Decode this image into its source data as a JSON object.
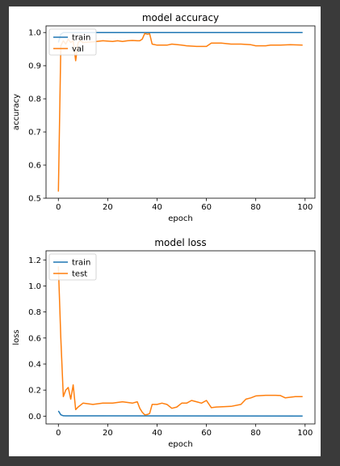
{
  "colors": {
    "train": "#1f77b4",
    "val": "#ff7f0e",
    "page_background": "#3a3a3a",
    "figure_background": "#ffffff"
  },
  "chart_data": [
    {
      "type": "line",
      "title": "model accuracy",
      "xlabel": "epoch",
      "ylabel": "accuracy",
      "xlim": [
        -5,
        104
      ],
      "ylim": [
        0.5,
        1.02
      ],
      "xticks": [
        0,
        20,
        40,
        60,
        80,
        100
      ],
      "yticks": [
        0.5,
        0.6,
        0.7,
        0.8,
        0.9,
        1.0
      ],
      "ytick_labels": [
        "0.5",
        "0.6",
        "0.7",
        "0.8",
        "0.9",
        "1.0"
      ],
      "legend_position": "top-left",
      "series": [
        {
          "name": "train",
          "color": "#1f77b4",
          "x": [
            0,
            1,
            2,
            3,
            99
          ],
          "y": [
            0.97,
            0.995,
            1.0,
            1.0,
            1.0
          ]
        },
        {
          "name": "val",
          "color": "#ff7f0e",
          "x": [
            0,
            1,
            2,
            3,
            4,
            5,
            6,
            7,
            8,
            9,
            10,
            14,
            18,
            22,
            24,
            26,
            28,
            30,
            32,
            33,
            34,
            35,
            36,
            37,
            38,
            40,
            44,
            46,
            50,
            52,
            56,
            60,
            62,
            66,
            70,
            74,
            78,
            80,
            84,
            86,
            90,
            94,
            99
          ],
          "y": [
            0.52,
            0.96,
            0.975,
            0.965,
            0.98,
            0.97,
            0.975,
            0.915,
            0.97,
            0.975,
            0.97,
            0.972,
            0.975,
            0.973,
            0.975,
            0.973,
            0.975,
            0.976,
            0.975,
            0.975,
            0.98,
            0.997,
            0.995,
            0.996,
            0.965,
            0.962,
            0.962,
            0.965,
            0.962,
            0.96,
            0.958,
            0.958,
            0.968,
            0.968,
            0.965,
            0.965,
            0.963,
            0.96,
            0.96,
            0.962,
            0.962,
            0.963,
            0.962
          ]
        }
      ]
    },
    {
      "type": "line",
      "title": "model loss",
      "xlabel": "epoch",
      "ylabel": "loss",
      "xlim": [
        -5,
        104
      ],
      "ylim": [
        -0.06,
        1.27
      ],
      "xticks": [
        0,
        20,
        40,
        60,
        80,
        100
      ],
      "yticks": [
        0.0,
        0.2,
        0.4,
        0.6,
        0.8,
        1.0,
        1.2
      ],
      "ytick_labels": [
        "0.0",
        "0.2",
        "0.4",
        "0.6",
        "0.8",
        "1.0",
        "1.2"
      ],
      "legend_position": "top-left",
      "series": [
        {
          "name": "train",
          "color": "#1f77b4",
          "x": [
            0,
            1,
            2,
            3,
            99
          ],
          "y": [
            0.04,
            0.01,
            0.003,
            0.002,
            0.001
          ]
        },
        {
          "name": "test",
          "color": "#ff7f0e",
          "x": [
            0,
            1,
            2,
            3,
            4,
            5,
            6,
            7,
            8,
            10,
            14,
            18,
            22,
            26,
            30,
            32,
            33,
            34,
            35,
            36,
            37,
            38,
            40,
            42,
            44,
            46,
            48,
            50,
            52,
            54,
            56,
            58,
            60,
            62,
            64,
            70,
            74,
            76,
            78,
            80,
            84,
            88,
            90,
            92,
            94,
            96,
            99
          ],
          "y": [
            1.15,
            0.6,
            0.15,
            0.2,
            0.22,
            0.13,
            0.24,
            0.05,
            0.07,
            0.1,
            0.09,
            0.1,
            0.1,
            0.11,
            0.1,
            0.11,
            0.06,
            0.03,
            0.01,
            0.012,
            0.02,
            0.09,
            0.09,
            0.1,
            0.09,
            0.06,
            0.07,
            0.1,
            0.1,
            0.12,
            0.11,
            0.1,
            0.12,
            0.065,
            0.07,
            0.075,
            0.09,
            0.13,
            0.14,
            0.155,
            0.16,
            0.16,
            0.158,
            0.14,
            0.145,
            0.15,
            0.15
          ]
        }
      ]
    }
  ]
}
